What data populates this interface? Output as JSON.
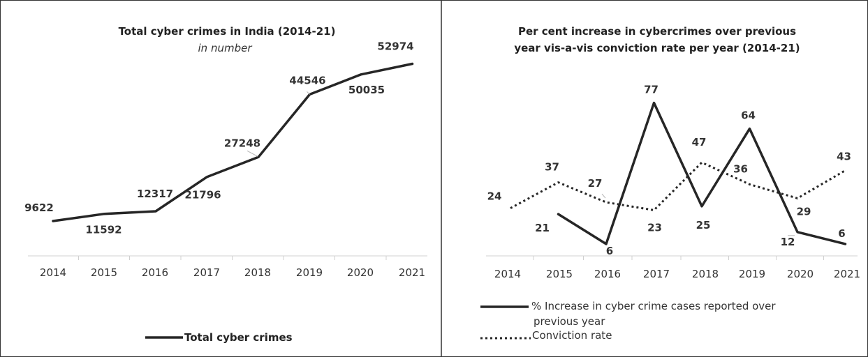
{
  "chart_data": [
    {
      "type": "line",
      "title": "Total cyber crimes in India (2014-21)",
      "subtitle": "in number",
      "categories": [
        "2014",
        "2015",
        "2016",
        "2017",
        "2018",
        "2019",
        "2020",
        "2021"
      ],
      "series": [
        {
          "name": "Total cyber crimes",
          "style": "solid",
          "color": "#262626",
          "values": [
            9622,
            11592,
            12317,
            21796,
            27248,
            44546,
            50035,
            52974
          ],
          "labels": [
            "9622",
            "11592",
            "12317",
            "21796",
            "27248",
            "44546",
            "50035",
            "52974"
          ]
        }
      ],
      "xlabel": "",
      "ylabel": "",
      "ylim": [
        0,
        60000
      ],
      "grid": false,
      "legend": "bottom"
    },
    {
      "type": "line",
      "title_lines": [
        "Per cent  increase in cybercrimes over previous",
        "year vis-a-vis conviction rate per year (2014-21)"
      ],
      "categories": [
        "2014",
        "2015",
        "2016",
        "2017",
        "2018",
        "2019",
        "2020",
        "2021"
      ],
      "series": [
        {
          "name_lines": [
            "% Increase in cyber crime cases reported  over",
            "previous year"
          ],
          "style": "solid",
          "color": "#262626",
          "values": [
            null,
            21,
            6,
            77,
            25,
            64,
            12,
            6
          ],
          "labels": [
            "",
            "21",
            "6",
            "77",
            "25",
            "64",
            "12",
            "6"
          ]
        },
        {
          "name_lines": [
            "Conviction rate"
          ],
          "style": "dotted",
          "color": "#262626",
          "values": [
            24,
            37,
            27,
            23,
            47,
            36,
            29,
            43
          ],
          "labels": [
            "24",
            "37",
            "27",
            "23",
            "47",
            "36",
            "29",
            "43"
          ]
        }
      ],
      "xlabel": "",
      "ylabel": "",
      "ylim": [
        0,
        80
      ],
      "grid": false,
      "legend": "bottom"
    }
  ]
}
